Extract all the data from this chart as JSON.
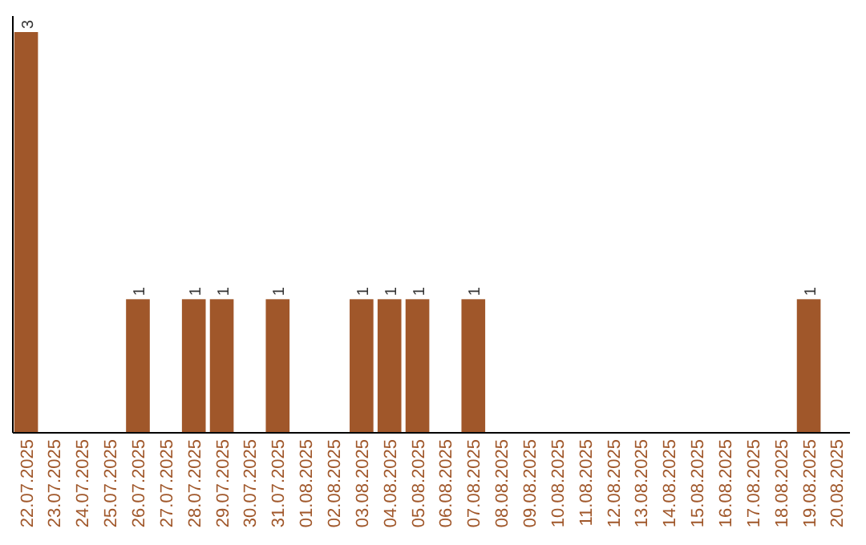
{
  "chart_data": {
    "type": "bar",
    "categories": [
      "22.07.2025",
      "23.07.2025",
      "24.07.2025",
      "25.07.2025",
      "26.07.2025",
      "27.07.2025",
      "28.07.2025",
      "29.07.2025",
      "30.07.2025",
      "31.07.2025",
      "01.08.2025",
      "02.08.2025",
      "03.08.2025",
      "04.08.2025",
      "05.08.2025",
      "06.08.2025",
      "07.08.2025",
      "08.08.2025",
      "09.08.2025",
      "10.08.2025",
      "11.08.2025",
      "12.08.2025",
      "13.08.2025",
      "14.08.2025",
      "15.08.2025",
      "16.08.2025",
      "17.08.2025",
      "18.08.2025",
      "19.08.2025",
      "20.08.2025"
    ],
    "values": [
      3,
      0,
      0,
      0,
      1,
      0,
      1,
      1,
      0,
      1,
      0,
      0,
      1,
      1,
      1,
      0,
      1,
      0,
      0,
      0,
      0,
      0,
      0,
      0,
      0,
      0,
      0,
      0,
      1,
      0
    ],
    "value_labels": [
      "3",
      null,
      null,
      null,
      "1",
      null,
      "1",
      "1",
      null,
      "1",
      null,
      null,
      "1",
      "1",
      "1",
      null,
      "1",
      null,
      null,
      null,
      null,
      null,
      null,
      null,
      null,
      null,
      null,
      null,
      "1",
      null
    ],
    "color": "#a0572a",
    "ylim": [
      0,
      3
    ],
    "tick_labels": "x"
  }
}
